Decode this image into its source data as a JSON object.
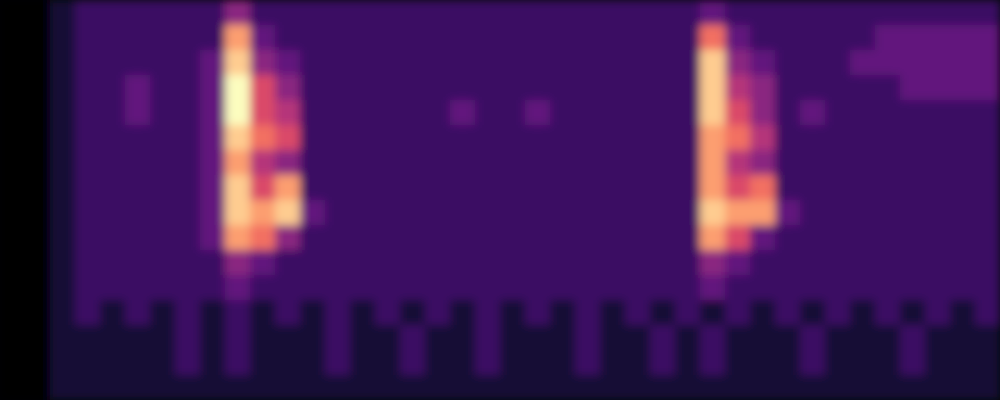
{
  "chart_data": {
    "type": "heatmap",
    "tick_labels": false,
    "cells": [
      [
        0,
        0,
        1,
        2,
        2,
        2,
        2,
        2,
        2,
        4,
        2,
        2,
        2,
        2,
        2,
        2,
        2,
        2,
        2,
        2,
        2,
        2,
        2,
        2,
        2,
        2,
        2,
        2,
        3,
        2,
        2,
        2,
        2,
        2,
        2,
        2,
        2,
        2,
        2,
        2
      ],
      [
        0,
        0,
        1,
        2,
        2,
        2,
        2,
        2,
        2,
        8,
        3,
        2,
        2,
        2,
        2,
        2,
        2,
        2,
        2,
        2,
        2,
        2,
        2,
        2,
        2,
        2,
        2,
        2,
        7,
        3,
        2,
        2,
        2,
        2,
        2,
        3,
        3,
        3,
        3,
        3
      ],
      [
        0,
        0,
        1,
        2,
        2,
        2,
        2,
        2,
        3,
        9,
        4,
        3,
        2,
        2,
        2,
        2,
        2,
        2,
        2,
        2,
        2,
        2,
        2,
        2,
        2,
        2,
        2,
        2,
        9,
        4,
        3,
        2,
        2,
        2,
        3,
        3,
        3,
        3,
        3,
        3
      ],
      [
        0,
        0,
        1,
        2,
        2,
        3,
        2,
        2,
        3,
        10,
        6,
        4,
        2,
        2,
        2,
        2,
        2,
        2,
        2,
        2,
        2,
        2,
        2,
        2,
        2,
        2,
        2,
        2,
        9,
        5,
        4,
        2,
        2,
        2,
        2,
        2,
        3,
        3,
        3,
        3
      ],
      [
        0,
        0,
        1,
        2,
        2,
        3,
        2,
        2,
        3,
        10,
        6,
        5,
        2,
        2,
        2,
        2,
        2,
        2,
        3,
        2,
        2,
        3,
        2,
        2,
        2,
        2,
        2,
        2,
        9,
        6,
        4,
        2,
        3,
        2,
        2,
        2,
        2,
        2,
        2,
        2
      ],
      [
        0,
        0,
        1,
        2,
        2,
        2,
        2,
        2,
        3,
        9,
        7,
        6,
        2,
        2,
        2,
        2,
        2,
        2,
        2,
        2,
        2,
        2,
        2,
        2,
        2,
        2,
        2,
        2,
        8,
        7,
        5,
        2,
        2,
        2,
        2,
        2,
        2,
        2,
        2,
        2
      ],
      [
        0,
        0,
        1,
        2,
        2,
        2,
        2,
        2,
        3,
        8,
        5,
        4,
        2,
        2,
        2,
        2,
        2,
        2,
        2,
        2,
        2,
        2,
        2,
        2,
        2,
        2,
        2,
        2,
        8,
        5,
        4,
        2,
        2,
        2,
        2,
        2,
        2,
        2,
        2,
        2
      ],
      [
        0,
        0,
        1,
        2,
        2,
        2,
        2,
        2,
        3,
        9,
        6,
        8,
        2,
        2,
        2,
        2,
        2,
        2,
        2,
        2,
        2,
        2,
        2,
        2,
        2,
        2,
        2,
        2,
        8,
        6,
        7,
        2,
        2,
        2,
        2,
        2,
        2,
        2,
        2,
        2
      ],
      [
        0,
        0,
        1,
        2,
        2,
        2,
        2,
        2,
        3,
        9,
        8,
        9,
        3,
        2,
        2,
        2,
        2,
        2,
        2,
        2,
        2,
        2,
        2,
        2,
        2,
        2,
        2,
        2,
        9,
        8,
        8,
        3,
        2,
        2,
        2,
        2,
        2,
        2,
        2,
        2
      ],
      [
        0,
        0,
        1,
        2,
        2,
        2,
        2,
        2,
        3,
        8,
        7,
        4,
        2,
        2,
        2,
        2,
        2,
        2,
        2,
        2,
        2,
        2,
        2,
        2,
        2,
        2,
        2,
        2,
        8,
        6,
        3,
        2,
        2,
        2,
        2,
        2,
        2,
        2,
        2,
        2
      ],
      [
        0,
        0,
        1,
        2,
        2,
        2,
        2,
        2,
        2,
        4,
        3,
        2,
        2,
        2,
        2,
        2,
        2,
        2,
        2,
        2,
        2,
        2,
        2,
        2,
        2,
        2,
        2,
        2,
        4,
        3,
        2,
        2,
        2,
        2,
        2,
        2,
        2,
        2,
        2,
        2
      ],
      [
        0,
        0,
        1,
        2,
        2,
        2,
        2,
        2,
        2,
        3,
        2,
        2,
        2,
        2,
        2,
        2,
        2,
        2,
        2,
        2,
        2,
        2,
        2,
        2,
        2,
        2,
        2,
        2,
        3,
        2,
        2,
        2,
        2,
        2,
        2,
        2,
        2,
        2,
        2,
        2
      ],
      [
        0,
        0,
        1,
        2,
        1,
        2,
        1,
        2,
        1,
        2,
        1,
        2,
        1,
        2,
        1,
        2,
        1,
        2,
        1,
        2,
        1,
        2,
        1,
        2,
        1,
        2,
        1,
        2,
        1,
        2,
        1,
        2,
        1,
        2,
        1,
        2,
        1,
        2,
        1,
        2
      ],
      [
        0,
        0,
        1,
        1,
        1,
        1,
        1,
        2,
        1,
        2,
        1,
        1,
        1,
        2,
        1,
        1,
        2,
        1,
        1,
        2,
        1,
        1,
        1,
        2,
        1,
        1,
        2,
        1,
        2,
        1,
        1,
        1,
        2,
        1,
        1,
        1,
        2,
        1,
        1,
        1
      ],
      [
        0,
        0,
        1,
        1,
        1,
        1,
        1,
        2,
        1,
        2,
        1,
        1,
        1,
        2,
        1,
        1,
        2,
        1,
        1,
        2,
        1,
        1,
        1,
        2,
        1,
        1,
        2,
        1,
        2,
        1,
        1,
        1,
        2,
        1,
        1,
        1,
        2,
        1,
        1,
        1
      ],
      [
        0,
        0,
        1,
        1,
        1,
        1,
        1,
        1,
        1,
        1,
        1,
        1,
        1,
        1,
        1,
        1,
        1,
        1,
        1,
        1,
        1,
        1,
        1,
        1,
        1,
        1,
        1,
        1,
        1,
        1,
        1,
        1,
        1,
        1,
        1,
        1,
        1,
        1,
        1,
        1
      ]
    ]
  }
}
